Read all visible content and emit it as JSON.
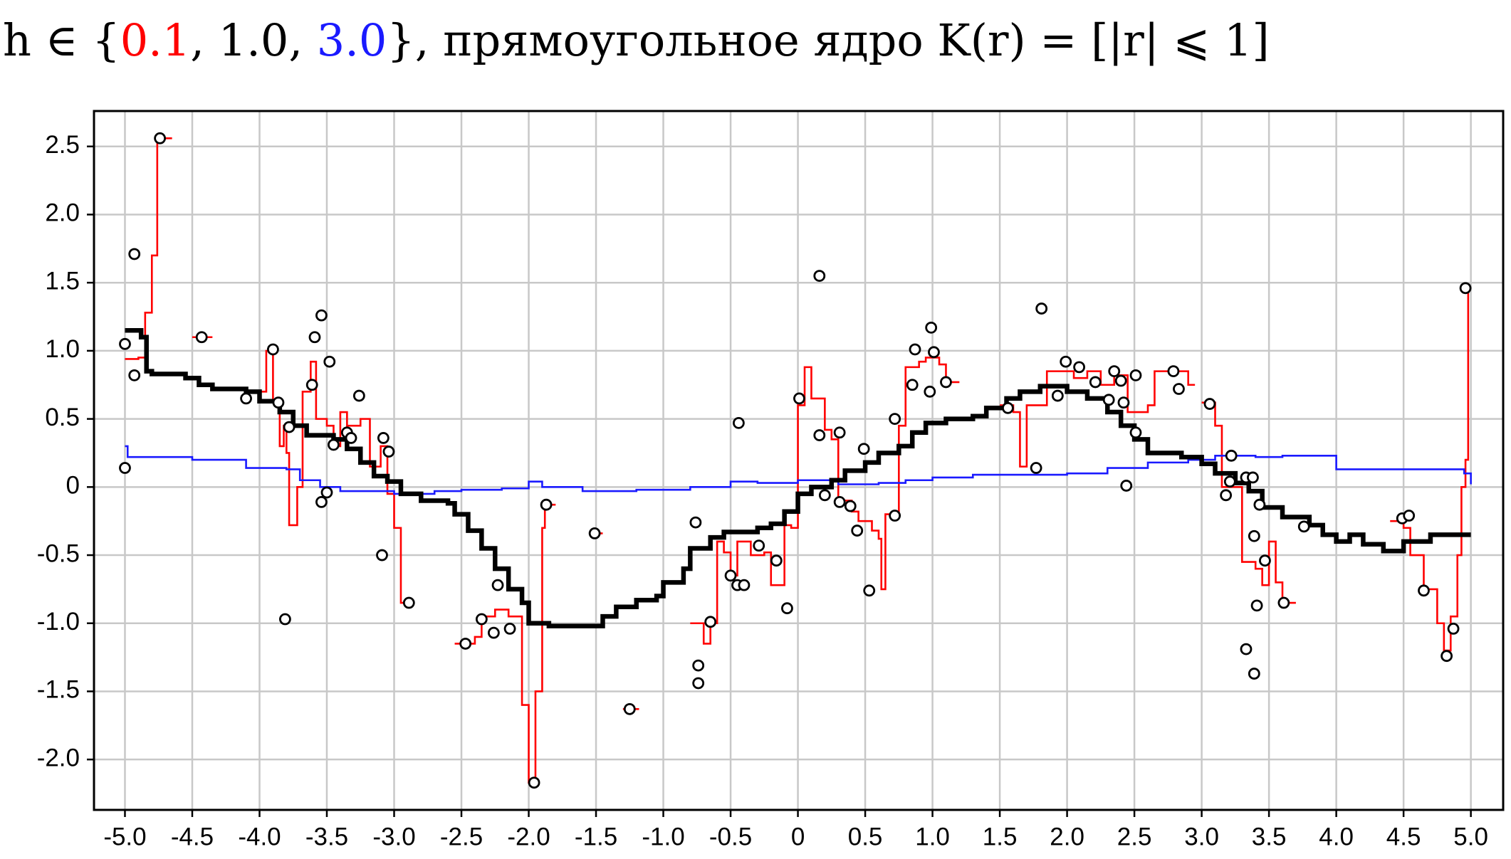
{
  "chart_data": {
    "type": "line",
    "title_parts": [
      "h ∈ {",
      ", ",
      ", ",
      "},  прямоугольное ядро K(r) = [|r| ⩽ 1]"
    ],
    "xlim": [
      -5.23,
      5.24
    ],
    "ylim": [
      -2.37,
      2.76
    ],
    "grid": true,
    "xticks": [
      {
        "value": -5,
        "label": "-5.0"
      },
      {
        "value": -4.5,
        "label": "-4.5"
      },
      {
        "value": -4,
        "label": "-4.0"
      },
      {
        "value": -3.5,
        "label": "-3.5"
      },
      {
        "value": -3,
        "label": "-3.0"
      },
      {
        "value": -2.5,
        "label": "-2.5"
      },
      {
        "value": -2,
        "label": "-2.0"
      },
      {
        "value": -1.5,
        "label": "-1.5"
      },
      {
        "value": -1,
        "label": "-1.0"
      },
      {
        "value": -0.5,
        "label": "-0.5"
      },
      0,
      0.5,
      {
        "value": 1,
        "label": "1.0"
      },
      1.5,
      {
        "value": 2,
        "label": "2.0"
      },
      2.5,
      {
        "value": 3,
        "label": "3.0"
      },
      3.5,
      {
        "value": 4,
        "label": "4.0"
      },
      4.5,
      {
        "value": 5,
        "label": "5.0"
      }
    ],
    "yticks": [
      2.5,
      {
        "value": 2,
        "label": "2.0"
      },
      1.5,
      {
        "value": 1,
        "label": "1.0"
      },
      0.5,
      0,
      -0.5,
      {
        "value": -1,
        "label": "-1.0"
      },
      -1.5,
      {
        "value": -2,
        "label": "-2.0"
      }
    ],
    "series": [
      {
        "name": "0.1",
        "color": "#ff0000",
        "x": [
          -5.0,
          -4.9,
          -4.85,
          -4.8,
          -4.76,
          -4.65,
          -4.5,
          -4.35,
          -4.0,
          -3.95,
          -3.9,
          -3.85,
          -3.82,
          -3.8,
          -3.78,
          -3.72,
          -3.68,
          -3.62,
          -3.58,
          -3.5,
          -3.45,
          -3.4,
          -3.35,
          -3.25,
          -3.2,
          -3.18,
          -3.1,
          -3.05,
          -3.0,
          -2.95,
          -2.85,
          -2.55,
          -2.4,
          -2.35,
          -2.25,
          -2.15,
          -2.05,
          -2.0,
          -1.95,
          -1.9,
          -1.88,
          -1.8,
          -1.55,
          -1.45,
          -1.3,
          -1.18,
          -0.8,
          -0.7,
          -0.65,
          -0.6,
          -0.55,
          -0.5,
          -0.45,
          -0.35,
          -0.25,
          -0.2,
          -0.1,
          -0.05,
          0.0,
          0.05,
          0.1,
          0.2,
          0.25,
          0.3,
          0.4,
          0.45,
          0.55,
          0.6,
          0.62,
          0.65,
          0.75,
          0.8,
          0.9,
          0.95,
          1.05,
          1.1,
          1.2,
          1.5,
          1.6,
          1.65,
          1.7,
          1.85,
          1.95,
          2.05,
          2.15,
          2.25,
          2.35,
          2.45,
          2.6,
          2.65,
          2.75,
          2.9,
          2.95,
          3.0,
          3.1,
          3.15,
          3.3,
          3.4,
          3.45,
          3.5,
          3.55,
          3.6,
          3.7,
          4.4,
          4.5,
          4.55,
          4.65,
          4.75,
          4.8,
          4.85,
          4.9,
          4.93,
          4.96,
          4.98,
          5.0
        ],
        "values": [
          0.94,
          0.95,
          1.28,
          1.7,
          2.56,
          null,
          1.1,
          null,
          0.7,
          1.0,
          0.62,
          0.3,
          0.45,
          0.25,
          -0.28,
          0.0,
          0.7,
          0.92,
          0.5,
          0.45,
          0.3,
          0.55,
          0.45,
          0.5,
          0.5,
          0.15,
          0.3,
          -0.05,
          -0.3,
          -0.85,
          null,
          -1.15,
          -1.1,
          -0.95,
          -0.9,
          -0.95,
          -1.6,
          -2.17,
          -1.5,
          -0.3,
          -0.13,
          null,
          -0.34,
          null,
          -1.63,
          null,
          -1.0,
          -1.15,
          -1.0,
          -0.4,
          -0.48,
          -0.65,
          -0.4,
          -0.5,
          -0.48,
          -0.72,
          -0.28,
          -0.3,
          0.6,
          0.88,
          0.65,
          0.42,
          0.35,
          -0.1,
          -0.18,
          -0.25,
          -0.32,
          -0.38,
          -0.75,
          -0.2,
          0.45,
          0.88,
          0.92,
          0.95,
          0.9,
          0.77,
          null,
          0.6,
          0.55,
          0.15,
          0.6,
          0.85,
          0.85,
          0.8,
          0.85,
          0.75,
          0.82,
          0.55,
          0.6,
          0.85,
          0.85,
          0.75,
          null,
          0.62,
          0.45,
          0.0,
          -0.55,
          -0.6,
          -0.72,
          -0.4,
          -0.7,
          -0.85,
          null,
          -0.25,
          -0.3,
          -0.5,
          -0.75,
          -1.0,
          -1.2,
          -0.95,
          -0.5,
          0.0,
          0.2,
          1.46,
          null
        ]
      },
      {
        "name": "1.0",
        "color": "#000000",
        "x": [
          -5.0,
          -4.88,
          -4.84,
          -4.8,
          -4.55,
          -4.45,
          -4.35,
          -4.1,
          -4.0,
          -3.85,
          -3.75,
          -3.65,
          -3.45,
          -3.35,
          -3.25,
          -3.15,
          -3.05,
          -2.95,
          -2.8,
          -2.6,
          -2.55,
          -2.45,
          -2.35,
          -2.25,
          -2.15,
          -2.05,
          -2.0,
          -1.85,
          -1.6,
          -1.45,
          -1.35,
          -1.2,
          -1.05,
          -1.0,
          -0.85,
          -0.8,
          -0.65,
          -0.55,
          -0.3,
          -0.2,
          -0.1,
          0.0,
          0.1,
          0.25,
          0.35,
          0.5,
          0.6,
          0.75,
          0.85,
          0.95,
          1.1,
          1.3,
          1.4,
          1.55,
          1.65,
          1.8,
          2.0,
          2.15,
          2.3,
          2.4,
          2.5,
          2.6,
          2.85,
          3.0,
          3.1,
          3.25,
          3.35,
          3.45,
          3.6,
          3.8,
          3.9,
          4.0,
          4.1,
          4.2,
          4.35,
          4.5,
          4.7,
          5.0
        ],
        "values": [
          1.15,
          1.1,
          0.85,
          0.83,
          0.8,
          0.75,
          0.72,
          0.7,
          0.63,
          0.55,
          0.45,
          0.38,
          0.35,
          0.28,
          0.18,
          0.08,
          0.04,
          -0.05,
          -0.1,
          -0.12,
          -0.2,
          -0.32,
          -0.45,
          -0.6,
          -0.75,
          -0.85,
          -1.0,
          -1.02,
          -1.02,
          -0.95,
          -0.88,
          -0.83,
          -0.8,
          -0.7,
          -0.6,
          -0.45,
          -0.37,
          -0.33,
          -0.3,
          -0.27,
          -0.18,
          -0.05,
          0.0,
          0.05,
          0.12,
          0.18,
          0.25,
          0.3,
          0.4,
          0.47,
          0.5,
          0.52,
          0.58,
          0.65,
          0.7,
          0.74,
          0.7,
          0.65,
          0.55,
          0.45,
          0.35,
          0.25,
          0.22,
          0.17,
          0.1,
          0.03,
          -0.03,
          -0.15,
          -0.22,
          -0.28,
          -0.35,
          -0.4,
          -0.35,
          -0.42,
          -0.47,
          -0.4,
          -0.35,
          -0.35
        ]
      },
      {
        "name": "3.0",
        "color": "#1a1aff",
        "x": [
          -5.0,
          -4.98,
          -4.5,
          -4.1,
          -3.8,
          -3.7,
          -3.55,
          -3.4,
          -3.0,
          -2.7,
          -2.5,
          -2.2,
          -2.0,
          -1.9,
          -1.6,
          -1.2,
          -0.8,
          -0.5,
          -0.3,
          0.0,
          0.3,
          0.6,
          0.8,
          1.0,
          1.3,
          1.7,
          2.0,
          2.3,
          2.6,
          2.9,
          3.1,
          3.4,
          3.6,
          4.0,
          4.95,
          5.0
        ],
        "values": [
          0.3,
          0.22,
          0.2,
          0.14,
          0.13,
          0.05,
          0.0,
          -0.03,
          -0.05,
          -0.03,
          -0.02,
          -0.01,
          0.04,
          0.0,
          -0.03,
          -0.02,
          0.0,
          0.04,
          0.03,
          0.05,
          0.02,
          0.03,
          0.05,
          0.07,
          0.09,
          0.09,
          0.1,
          0.14,
          0.18,
          0.2,
          0.23,
          0.22,
          0.23,
          0.13,
          0.1,
          0.02
        ]
      }
    ],
    "scatter": {
      "x": [
        -5.0,
        -5.0,
        -4.93,
        -4.93,
        -4.74,
        -4.43,
        -4.1,
        -3.9,
        -3.86,
        -3.81,
        -3.78,
        -3.61,
        -3.59,
        -3.54,
        -3.54,
        -3.5,
        -3.48,
        -3.45,
        -3.35,
        -3.32,
        -3.26,
        -3.09,
        -3.08,
        -3.04,
        -2.89,
        -2.47,
        -2.35,
        -2.26,
        -2.23,
        -2.14,
        -1.96,
        -1.87,
        -1.51,
        -1.25,
        -0.76,
        -0.74,
        -0.74,
        -0.65,
        -0.5,
        -0.45,
        -0.44,
        -0.4,
        -0.29,
        -0.16,
        -0.08,
        0.01,
        0.16,
        0.16,
        0.2,
        0.31,
        0.31,
        0.39,
        0.44,
        0.49,
        0.53,
        0.72,
        0.72,
        0.85,
        0.87,
        0.98,
        0.99,
        1.01,
        1.1,
        1.56,
        1.77,
        1.81,
        1.93,
        1.99,
        2.09,
        2.21,
        2.31,
        2.35,
        2.4,
        2.42,
        2.44,
        2.51,
        2.51,
        2.79,
        2.83,
        3.06,
        3.18,
        3.22,
        3.21,
        3.33,
        3.38,
        3.33,
        3.39,
        3.39,
        3.41,
        3.43,
        3.47,
        3.61,
        3.76,
        4.49,
        4.54,
        4.65,
        4.82,
        4.87,
        4.96
      ],
      "values": [
        1.05,
        0.14,
        0.82,
        1.71,
        2.56,
        1.1,
        0.65,
        1.01,
        0.62,
        -0.97,
        0.44,
        0.75,
        1.1,
        1.26,
        -0.11,
        -0.04,
        0.92,
        0.31,
        0.4,
        0.36,
        0.67,
        -0.5,
        0.36,
        0.26,
        -0.85,
        -1.15,
        -0.97,
        -1.07,
        -0.72,
        -1.04,
        -2.17,
        -0.13,
        -0.34,
        -1.63,
        -0.26,
        -1.31,
        -1.44,
        -0.99,
        -0.65,
        -0.72,
        0.47,
        -0.72,
        -0.43,
        -0.54,
        -0.89,
        0.65,
        1.55,
        0.38,
        -0.06,
        0.4,
        -0.11,
        -0.14,
        -0.32,
        0.28,
        -0.76,
        -0.21,
        0.5,
        0.75,
        1.01,
        0.7,
        1.17,
        0.99,
        0.77,
        0.58,
        0.14,
        1.31,
        0.67,
        0.92,
        0.88,
        0.77,
        0.64,
        0.85,
        0.78,
        0.62,
        0.01,
        0.82,
        0.4,
        0.85,
        0.72,
        0.61,
        -0.06,
        0.23,
        0.04,
        0.07,
        0.07,
        -1.19,
        -0.36,
        -1.37,
        -0.87,
        -0.13,
        -0.54,
        -0.85,
        -0.29,
        -0.23,
        -0.21,
        -0.76,
        -1.24,
        -1.04,
        1.46
      ]
    }
  }
}
